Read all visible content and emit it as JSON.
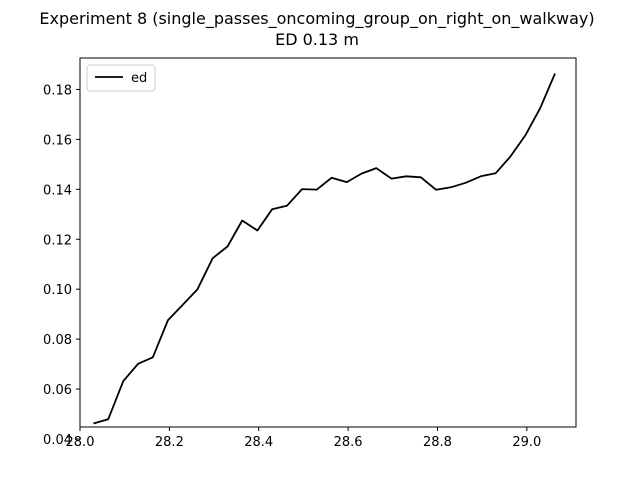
{
  "chart_data": {
    "type": "line",
    "title": "Experiment 8 (single_passes_oncoming_group_on_right_on_walkway)",
    "subtitle": "ED 0.13 m",
    "xlabel": "",
    "ylabel": "",
    "xlim": [
      28.0,
      29.11
    ],
    "ylim": [
      0.0448,
      0.1926
    ],
    "xticks": [
      "28.0",
      "28.2",
      "28.4",
      "28.6",
      "28.8",
      "29.0"
    ],
    "yticks": [
      "0.04",
      "0.06",
      "0.08",
      "0.10",
      "0.12",
      "0.14",
      "0.16",
      "0.18"
    ],
    "grid": false,
    "legend_position": "upper-left",
    "series": [
      {
        "name": "ed",
        "color": "#000000",
        "x": [
          28.03,
          28.063,
          28.097,
          28.13,
          28.163,
          28.197,
          28.23,
          28.263,
          28.297,
          28.33,
          28.363,
          28.397,
          28.43,
          28.463,
          28.497,
          28.53,
          28.563,
          28.597,
          28.63,
          28.663,
          28.697,
          28.73,
          28.763,
          28.797,
          28.83,
          28.863,
          28.897,
          28.93,
          28.963,
          28.997,
          29.03,
          29.063
        ],
        "y": [
          0.0462,
          0.0479,
          0.0632,
          0.0701,
          0.0727,
          0.0876,
          0.0938,
          0.1,
          0.1124,
          0.1171,
          0.1275,
          0.1235,
          0.132,
          0.1334,
          0.1401,
          0.1399,
          0.1446,
          0.1429,
          0.1463,
          0.1485,
          0.1443,
          0.1452,
          0.1448,
          0.1398,
          0.1408,
          0.1426,
          0.1452,
          0.1464,
          0.1531,
          0.1617,
          0.1726,
          0.1864
        ]
      }
    ]
  }
}
